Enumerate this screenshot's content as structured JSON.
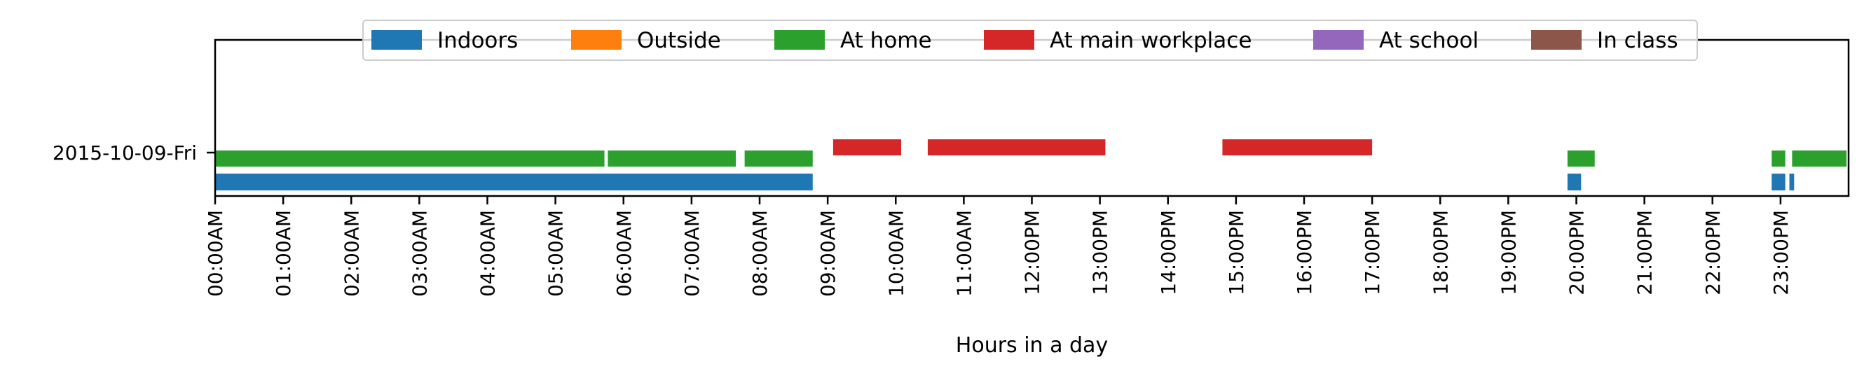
{
  "chart_data": {
    "type": "timeline",
    "xlabel": "Hours in a day",
    "ylabel": "",
    "xlim": [
      0,
      24
    ],
    "x_ticks": [
      "00:00AM",
      "01:00AM",
      "02:00AM",
      "03:00AM",
      "04:00AM",
      "05:00AM",
      "06:00AM",
      "07:00AM",
      "08:00AM",
      "09:00AM",
      "10:00AM",
      "11:00AM",
      "12:00PM",
      "13:00PM",
      "14:00PM",
      "15:00PM",
      "16:00PM",
      "17:00PM",
      "18:00PM",
      "19:00PM",
      "20:00PM",
      "21:00PM",
      "22:00PM",
      "23:00PM"
    ],
    "rows": [
      "2015-10-09-Fri"
    ],
    "legend": {
      "placement": "top-center",
      "entries": [
        {
          "name": "Indoors",
          "color": "#1f77b4"
        },
        {
          "name": "Outside",
          "color": "#ff7f0e"
        },
        {
          "name": "At home",
          "color": "#2ca02c"
        },
        {
          "name": "At main workplace",
          "color": "#d62728"
        },
        {
          "name": "At school",
          "color": "#9467bd"
        },
        {
          "name": "In class",
          "color": "#8c564b"
        }
      ]
    },
    "series": [
      {
        "name": "Indoors",
        "color": "#1f77b4",
        "lane": "bottom",
        "intervals": [
          [
            0.0,
            8.78
          ],
          [
            19.87,
            20.07
          ],
          [
            22.87,
            23.07
          ],
          [
            23.13,
            23.2
          ]
        ]
      },
      {
        "name": "At home",
        "color": "#2ca02c",
        "lane": "middle",
        "intervals": [
          [
            0.0,
            5.72
          ],
          [
            5.77,
            7.65
          ],
          [
            7.78,
            8.78
          ],
          [
            19.87,
            20.27
          ],
          [
            22.87,
            23.07
          ],
          [
            23.17,
            23.97
          ]
        ]
      },
      {
        "name": "At main workplace",
        "color": "#d62728",
        "lane": "top",
        "intervals": [
          [
            9.08,
            10.08
          ],
          [
            10.47,
            13.08
          ],
          [
            14.8,
            17.0
          ]
        ]
      }
    ],
    "grid": false
  }
}
